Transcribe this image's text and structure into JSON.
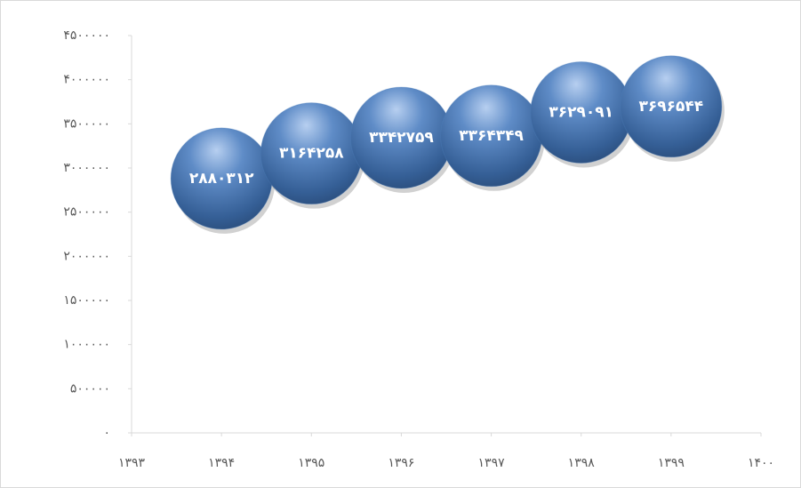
{
  "chart_data": {
    "type": "bubble",
    "x": [
      1394,
      1395,
      1396,
      1397,
      1398,
      1399
    ],
    "series": [
      {
        "color": "#4f81bd",
        "values": [
          2880312,
          3164258,
          3342759,
          3364349,
          3629091,
          3696544
        ],
        "value_labels": [
          "۲۸۸۰۳۱۲",
          "۳۱۶۴۲۵۸",
          "۳۳۴۲۷۵۹",
          "۳۳۶۴۳۴۹",
          "۳۶۲۹۰۹۱",
          "۳۶۹۶۵۴۴"
        ]
      }
    ],
    "xlim": [
      1393,
      1400
    ],
    "xticks": [
      {
        "value": 1393,
        "label": "۱۳۹۳"
      },
      {
        "value": 1394,
        "label": "۱۳۹۴"
      },
      {
        "value": 1395,
        "label": "۱۳۹۵"
      },
      {
        "value": 1396,
        "label": "۱۳۹۶"
      },
      {
        "value": 1397,
        "label": "۱۳۹۷"
      },
      {
        "value": 1398,
        "label": "۱۳۹۸"
      },
      {
        "value": 1399,
        "label": "۱۳۹۹"
      },
      {
        "value": 1400,
        "label": "۱۴۰۰"
      }
    ],
    "ylim": [
      0,
      4500000
    ],
    "yticks": [
      {
        "value": 0,
        "label": "۰"
      },
      {
        "value": 500000,
        "label": "۵۰۰۰۰۰"
      },
      {
        "value": 1000000,
        "label": "۱۰۰۰۰۰۰"
      },
      {
        "value": 1500000,
        "label": "۱۵۰۰۰۰۰"
      },
      {
        "value": 2000000,
        "label": "۲۰۰۰۰۰۰"
      },
      {
        "value": 2500000,
        "label": "۲۵۰۰۰۰۰"
      },
      {
        "value": 3000000,
        "label": "۳۰۰۰۰۰۰"
      },
      {
        "value": 3500000,
        "label": "۳۵۰۰۰۰۰"
      },
      {
        "value": 4000000,
        "label": "۴۰۰۰۰۰۰"
      },
      {
        "value": 4500000,
        "label": "۴۵۰۰۰۰۰"
      }
    ],
    "grid": false
  }
}
